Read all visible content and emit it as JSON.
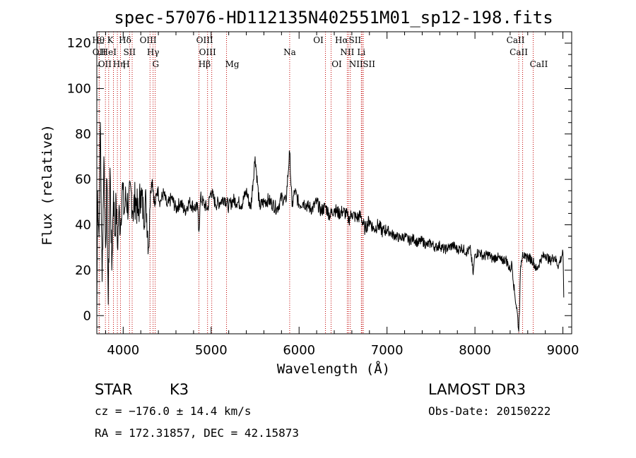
{
  "chart_data": {
    "type": "line",
    "title": "spec-57076-HD112135N402551M01_sp12-198.fits",
    "xlabel": "Wavelength (Å)",
    "ylabel": "Flux (relative)",
    "xlim": [
      3700,
      9100
    ],
    "ylim": [
      -8,
      125
    ],
    "xticks": [
      4000,
      5000,
      6000,
      7000,
      8000,
      9000
    ],
    "yticks": [
      0,
      20,
      40,
      60,
      80,
      100,
      120
    ],
    "series": [
      {
        "name": "flux",
        "x": [
          3700,
          3710,
          3725,
          3740,
          3760,
          3780,
          3800,
          3815,
          3830,
          3850,
          3870,
          3890,
          3905,
          3920,
          3935,
          3950,
          3970,
          3990,
          4010,
          4030,
          4060,
          4090,
          4110,
          4140,
          4170,
          4200,
          4230,
          4260,
          4290,
          4310,
          4330,
          4360,
          4390,
          4420,
          4460,
          4500,
          4550,
          4600,
          4650,
          4700,
          4750,
          4800,
          4850,
          4861,
          4880,
          4920,
          4960,
          5000,
          5050,
          5100,
          5150,
          5200,
          5250,
          5300,
          5350,
          5400,
          5450,
          5500,
          5550,
          5600,
          5650,
          5700,
          5750,
          5800,
          5850,
          5893,
          5920,
          5950,
          6000,
          6050,
          6100,
          6150,
          6200,
          6250,
          6300,
          6350,
          6400,
          6450,
          6500,
          6550,
          6563,
          6600,
          6650,
          6700,
          6750,
          6800,
          6850,
          6900,
          6950,
          7000,
          7050,
          7100,
          7150,
          7200,
          7250,
          7300,
          7350,
          7400,
          7450,
          7500,
          7550,
          7600,
          7650,
          7700,
          7750,
          7800,
          7850,
          7900,
          7950,
          7980,
          8000,
          8050,
          8100,
          8150,
          8200,
          8250,
          8300,
          8350,
          8400,
          8420,
          8450,
          8480,
          8498,
          8520,
          8542,
          8570,
          8600,
          8662,
          8700,
          8750,
          8800,
          8850,
          8900,
          8950,
          9000,
          9010
        ],
        "values": [
          0,
          55,
          35,
          85,
          15,
          70,
          30,
          60,
          5,
          65,
          20,
          55,
          35,
          50,
          30,
          45,
          40,
          58,
          45,
          52,
          48,
          55,
          46,
          52,
          44,
          55,
          45,
          50,
          30,
          55,
          60,
          48,
          56,
          50,
          54,
          48,
          52,
          47,
          50,
          46,
          50,
          48,
          47,
          37,
          52,
          49,
          47,
          55,
          49,
          50,
          52,
          48,
          51,
          50,
          49,
          55,
          47,
          70,
          48,
          50,
          51,
          49,
          47,
          52,
          50,
          72,
          48,
          55,
          49,
          50,
          48,
          47,
          50,
          46,
          48,
          44,
          47,
          45,
          46,
          44,
          42,
          45,
          43,
          44,
          38,
          42,
          38,
          40,
          37,
          38,
          36,
          35,
          34,
          35,
          33,
          34,
          32,
          33,
          31,
          32,
          30,
          31,
          29,
          30,
          31,
          29,
          30,
          28,
          29,
          18,
          27,
          28,
          26,
          27,
          25,
          26,
          24,
          25,
          20,
          23,
          10,
          2,
          -7,
          22,
          28,
          25,
          26,
          24,
          20,
          25,
          27,
          24,
          26,
          22,
          28,
          8
        ]
      }
    ],
    "spectral_lines": [
      {
        "label": "OII",
        "wavelength": 3727,
        "row": 2
      },
      {
        "label": "OII",
        "wavelength": 3727,
        "row": 3
      },
      {
        "label": "Hθ",
        "wavelength": 3798,
        "row": 1
      },
      {
        "label": "HeI",
        "wavelength": 3835,
        "row": 2
      },
      {
        "label": "Hη",
        "wavelength": 3889,
        "row": 3
      },
      {
        "label": "K",
        "wavelength": 3934,
        "row": 1
      },
      {
        "label": "SII",
        "wavelength": 4072,
        "row": 2
      },
      {
        "label": "H",
        "wavelength": 3969,
        "row": 3
      },
      {
        "label": "Hδ",
        "wavelength": 4102,
        "row": 1
      },
      {
        "label": "OIII",
        "wavelength": 4364,
        "row": 1
      },
      {
        "label": "Hγ",
        "wavelength": 4340,
        "row": 2
      },
      {
        "label": "G",
        "wavelength": 4305,
        "row": 3
      },
      {
        "label": "Hβ",
        "wavelength": 4861,
        "row": 3
      },
      {
        "label": "OIII",
        "wavelength": 4959,
        "row": 2
      },
      {
        "label": "OIII",
        "wavelength": 5007,
        "row": 1
      },
      {
        "label": "Mg",
        "wavelength": 5175,
        "row": 3
      },
      {
        "label": "Na",
        "wavelength": 5893,
        "row": 2
      },
      {
        "label": "OI",
        "wavelength": 6300,
        "row": 1
      },
      {
        "label": "OI",
        "wavelength": 6364,
        "row": 3
      },
      {
        "label": "Hα",
        "wavelength": 6563,
        "row": 1
      },
      {
        "label": "NII",
        "wavelength": 6548,
        "row": 2
      },
      {
        "label": "NII",
        "wavelength": 6583,
        "row": 3
      },
      {
        "label": "SII",
        "wavelength": 6716,
        "row": 1
      },
      {
        "label": "Li",
        "wavelength": 6708,
        "row": 2
      },
      {
        "label": "SII",
        "wavelength": 6731,
        "row": 3
      },
      {
        "label": "CaII",
        "wavelength": 8542,
        "row": 1
      },
      {
        "label": "CaII",
        "wavelength": 8498,
        "row": 2
      },
      {
        "label": "CaII",
        "wavelength": 8662,
        "row": 3
      }
    ]
  },
  "info": {
    "object_class": "STAR",
    "subclass": "K3",
    "survey": "LAMOST DR3",
    "redshift_line": "cz = −176.0 ± 14.4 km/s",
    "obs_date": "Obs-Date: 20150222",
    "coords": "RA = 172.31857, DEC =  42.15873"
  },
  "colors": {
    "line_marker": "#c00000",
    "spectrum": "#000000"
  }
}
